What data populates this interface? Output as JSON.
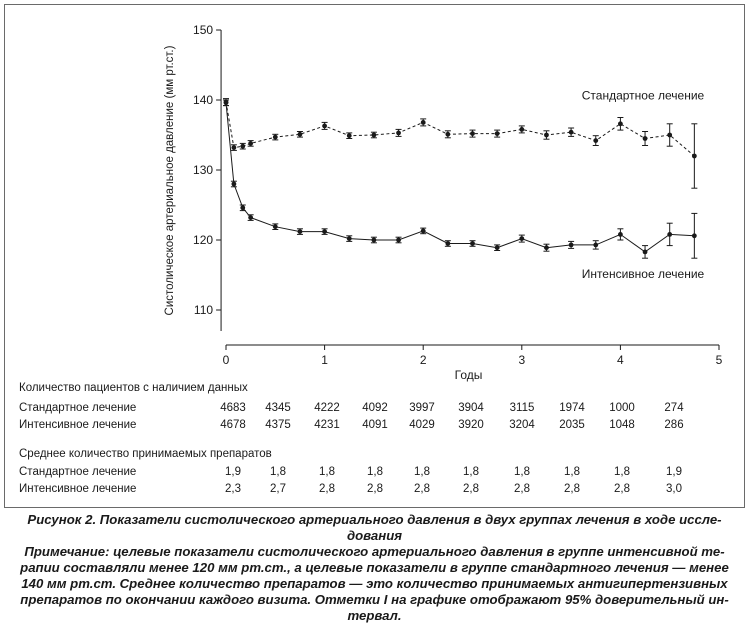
{
  "chart_data": {
    "type": "line",
    "ylabel": "Систолическое артериальное давление (мм рт.ст.)",
    "xlabel": "Годы",
    "ylim": [
      107,
      150
    ],
    "xlim": [
      -0.05,
      5
    ],
    "yticks": [
      110,
      120,
      130,
      140,
      150
    ],
    "xticks": [
      0,
      1,
      2,
      3,
      4,
      5
    ],
    "grid": false,
    "series": [
      {
        "name": "Стандартное лечение",
        "style": "dashed",
        "x": [
          0,
          0.08,
          0.17,
          0.25,
          0.5,
          0.75,
          1.0,
          1.25,
          1.5,
          1.75,
          2.0,
          2.25,
          2.5,
          2.75,
          3.0,
          3.25,
          3.5,
          3.75,
          4.0,
          4.25,
          4.5,
          4.75
        ],
        "y": [
          139.7,
          133.2,
          133.4,
          133.8,
          134.7,
          135.1,
          136.3,
          134.9,
          135.0,
          135.3,
          136.8,
          135.1,
          135.2,
          135.2,
          135.8,
          135.0,
          135.4,
          134.2,
          136.6,
          134.5,
          135.0,
          132.0
        ],
        "ci": [
          0.5,
          0.4,
          0.4,
          0.4,
          0.4,
          0.4,
          0.5,
          0.4,
          0.4,
          0.5,
          0.5,
          0.5,
          0.5,
          0.5,
          0.5,
          0.6,
          0.6,
          0.7,
          0.9,
          1.0,
          1.6,
          4.6
        ]
      },
      {
        "name": "Интенсивное лечение",
        "style": "solid",
        "x": [
          0,
          0.08,
          0.17,
          0.25,
          0.5,
          0.75,
          1.0,
          1.25,
          1.5,
          1.75,
          2.0,
          2.25,
          2.5,
          2.75,
          3.0,
          3.25,
          3.5,
          3.75,
          4.0,
          4.25,
          4.5,
          4.75
        ],
        "y": [
          139.6,
          128.0,
          124.6,
          123.2,
          121.9,
          121.2,
          121.2,
          120.2,
          120.0,
          120.0,
          121.3,
          119.5,
          119.5,
          118.9,
          120.2,
          118.9,
          119.3,
          119.3,
          120.8,
          118.3,
          120.8,
          120.6
        ],
        "ci": [
          0.4,
          0.4,
          0.4,
          0.4,
          0.4,
          0.4,
          0.4,
          0.4,
          0.4,
          0.4,
          0.4,
          0.4,
          0.4,
          0.4,
          0.5,
          0.5,
          0.5,
          0.6,
          0.8,
          0.9,
          1.6,
          3.2
        ]
      }
    ],
    "annotations": [
      "Стандартное лечение",
      "Интенсивное лечение"
    ]
  },
  "table": {
    "patients_header": "Количество пациентов с наличием данных",
    "patients_rows": [
      {
        "label": "Стандартное лечение",
        "values": [
          "4683",
          "4345",
          "4222",
          "4092",
          "3997",
          "3904",
          "3115",
          "1974",
          "1000",
          "274"
        ]
      },
      {
        "label": "Интенсивное лечение",
        "values": [
          "4678",
          "4375",
          "4231",
          "4091",
          "4029",
          "3920",
          "3204",
          "2035",
          "1048",
          "286"
        ]
      }
    ],
    "drugs_header": "Среднее количество принимаемых препаратов",
    "drugs_rows": [
      {
        "label": "Стандартное лечение",
        "values": [
          "1,9",
          "1,8",
          "1,8",
          "1,8",
          "1,8",
          "1,8",
          "1,8",
          "1,8",
          "1,8",
          "1,9"
        ]
      },
      {
        "label": "Интенсивное лечение",
        "values": [
          "2,3",
          "2,7",
          "2,8",
          "2,8",
          "2,8",
          "2,8",
          "2,8",
          "2,8",
          "2,8",
          "3,0"
        ]
      }
    ]
  },
  "caption": {
    "line1": "Рисунок 2. Показатели систолического артериального давления в двух группах лечения в ходе иссле-",
    "line2": "дования",
    "line3": "Примечание: целевые показатели систолического артериального давления в группе интенсивной те-",
    "line4": "рапии составляли менее 120 мм рт.ст., а целевые показатели в группе стандартного лечения — менее",
    "line5": "140 мм рт.ст. Среднее количество препаратов — это количество принимаемых антигипертензивных",
    "line6": "препаратов по окончании каждого визита. Отметки I на графике отображают 95% доверительный ин-",
    "line7": "тервал."
  }
}
